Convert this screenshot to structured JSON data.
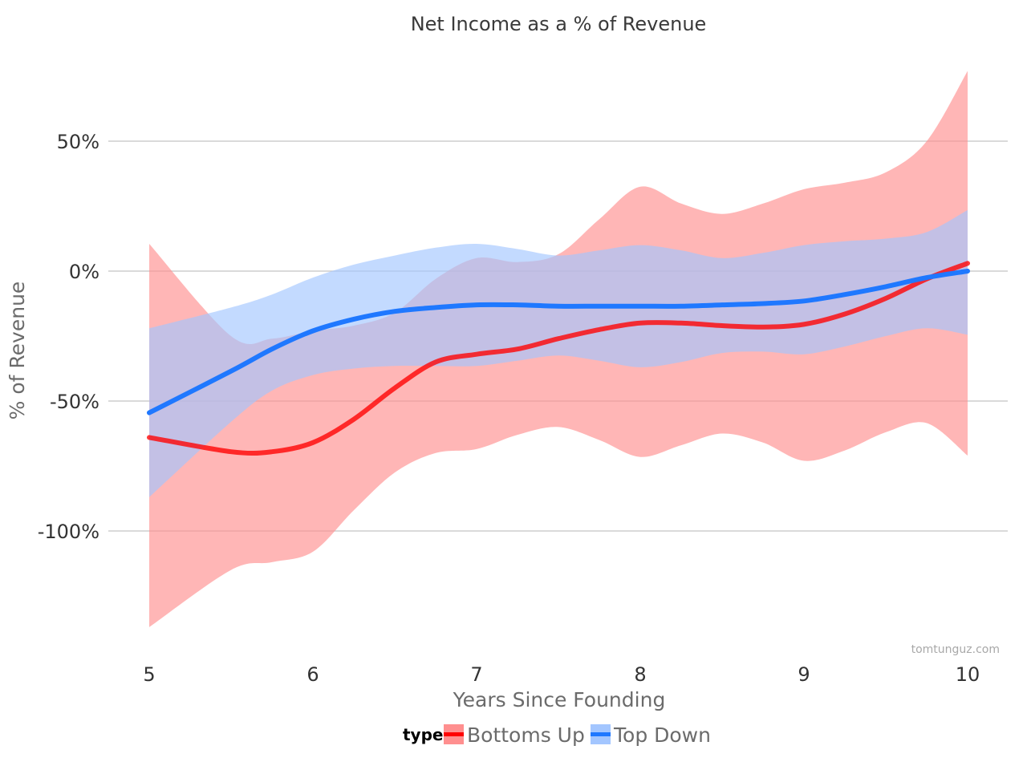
{
  "chart_data": {
    "type": "line",
    "title": "Net Income as a % of Revenue",
    "xlabel": "Years Since Founding",
    "ylabel": "% of Revenue",
    "xlim": [
      5,
      10
    ],
    "ylim": [
      -140,
      78
    ],
    "x_ticks": [
      5,
      6,
      7,
      8,
      9,
      10
    ],
    "x_tick_labels": [
      "5",
      "6",
      "7",
      "8",
      "9",
      "10"
    ],
    "y_ticks": [
      50,
      0,
      -50,
      -100
    ],
    "y_tick_labels": [
      "50%",
      "0%",
      "-50%",
      "-100%"
    ],
    "grid": true,
    "legend": {
      "title": "type",
      "position": "bottom"
    },
    "credit": "tomtunguz.com",
    "series": [
      {
        "name": "Bottoms Up",
        "color": "#ff0000",
        "band_color": "#ff8f8f",
        "x": [
          5,
          5.5,
          5.75,
          6,
          6.25,
          6.5,
          6.75,
          7,
          7.25,
          7.5,
          7.75,
          8,
          8.25,
          8.5,
          8.75,
          9,
          9.25,
          9.5,
          9.75,
          10
        ],
        "y": [
          -64,
          -69.5,
          -69.5,
          -66,
          -57,
          -45,
          -35,
          -32,
          -30,
          -26,
          -22.5,
          -20,
          -20,
          -21,
          -21.5,
          -20.5,
          -16.5,
          -10.5,
          -3,
          3
        ],
        "upper": [
          10.5,
          -25,
          -26,
          -23,
          -21,
          -16,
          -3,
          5,
          3.5,
          6.5,
          20,
          32.5,
          26,
          22,
          26,
          31.5,
          34,
          38,
          50,
          77
        ],
        "lower": [
          -137,
          -115,
          -112,
          -108,
          -92,
          -77.5,
          -70,
          -68.5,
          -63,
          -60,
          -65,
          -71.5,
          -67,
          -62.5,
          -66,
          -73,
          -69,
          -62,
          -58.5,
          -71
        ]
      },
      {
        "name": "Top Down",
        "color": "#1f78ff",
        "band_color": "#a3c6ff",
        "x": [
          5,
          5.5,
          5.75,
          6,
          6.25,
          6.5,
          6.75,
          7,
          7.25,
          7.5,
          7.75,
          8,
          8.25,
          8.5,
          8.75,
          9,
          9.25,
          9.5,
          9.75,
          10
        ],
        "y": [
          -54.5,
          -38.5,
          -30,
          -23,
          -18.5,
          -15.5,
          -14,
          -13,
          -13,
          -13.5,
          -13.5,
          -13.5,
          -13.5,
          -13,
          -12.5,
          -11.5,
          -9,
          -6,
          -2.5,
          0
        ],
        "upper": [
          -22,
          -14,
          -9,
          -2.5,
          2.5,
          6,
          9,
          10.5,
          8.5,
          6,
          8,
          10,
          8,
          5,
          7,
          10,
          11.5,
          12.5,
          15,
          23.5
        ],
        "lower": [
          -87,
          -58,
          -46,
          -40,
          -37.5,
          -36.5,
          -36.5,
          -36.5,
          -34.5,
          -32.5,
          -34.5,
          -37,
          -35,
          -31.5,
          -31,
          -32,
          -29,
          -25,
          -22,
          -24.5
        ]
      }
    ]
  }
}
